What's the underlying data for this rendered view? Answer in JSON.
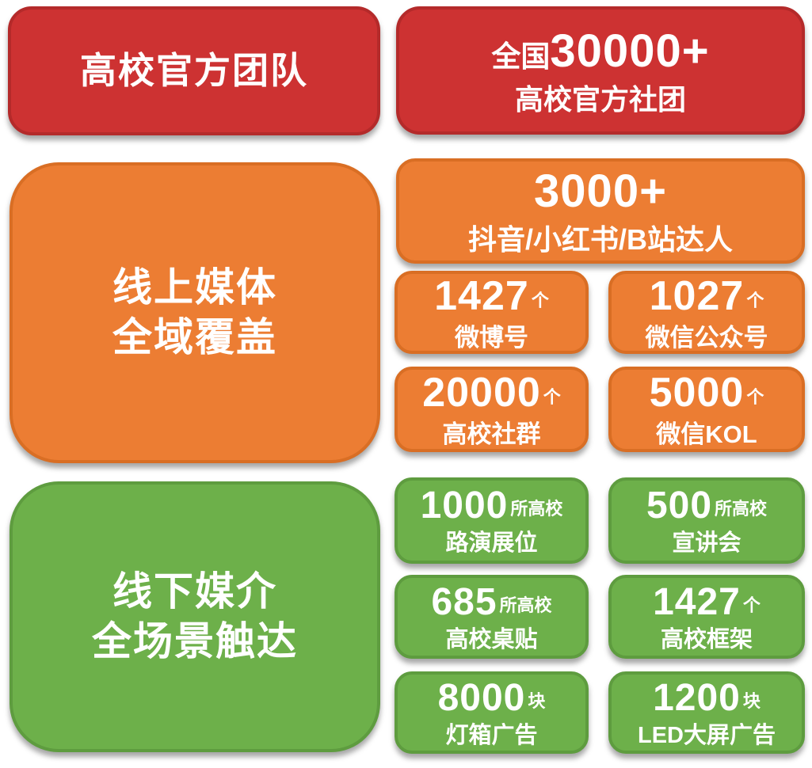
{
  "colors": {
    "red_fill": "#CD3232",
    "red_border": "#B42A2A",
    "orange_fill": "#EC7D33",
    "orange_border": "#D96E24",
    "green_fill": "#6DB04A",
    "green_border": "#5E9C3F",
    "text": "#FFFFFF",
    "background": "#FFFFFF"
  },
  "official": {
    "title": "高校官方团队",
    "stat": {
      "prefix": "全国",
      "number": "30000+",
      "label": "高校官方社团"
    }
  },
  "online": {
    "title_line1": "线上媒体",
    "title_line2": "全域覆盖",
    "hero": {
      "number": "3000+",
      "label": "抖音/小红书/B站达人"
    },
    "stats": [
      {
        "number": "1427",
        "unit": "个",
        "label": "微博号"
      },
      {
        "number": "1027",
        "unit": "个",
        "label": "微信公众号"
      },
      {
        "number": "20000",
        "unit": "个",
        "label": "高校社群"
      },
      {
        "number": "5000",
        "unit": "个",
        "label": "微信KOL"
      }
    ]
  },
  "offline": {
    "title_line1": "线下媒介",
    "title_line2": "全场景触达",
    "stats": [
      {
        "number": "1000",
        "unit": "所高校",
        "label": "路演展位"
      },
      {
        "number": "500",
        "unit": "所高校",
        "label": "宣讲会"
      },
      {
        "number": "685",
        "unit": "所高校",
        "label": "高校桌贴"
      },
      {
        "number": "1427",
        "unit": "个",
        "label": "高校框架"
      },
      {
        "number": "8000",
        "unit": "块",
        "label": "灯箱广告"
      },
      {
        "number": "1200",
        "unit": "块",
        "label": "LED大屏广告"
      }
    ]
  }
}
